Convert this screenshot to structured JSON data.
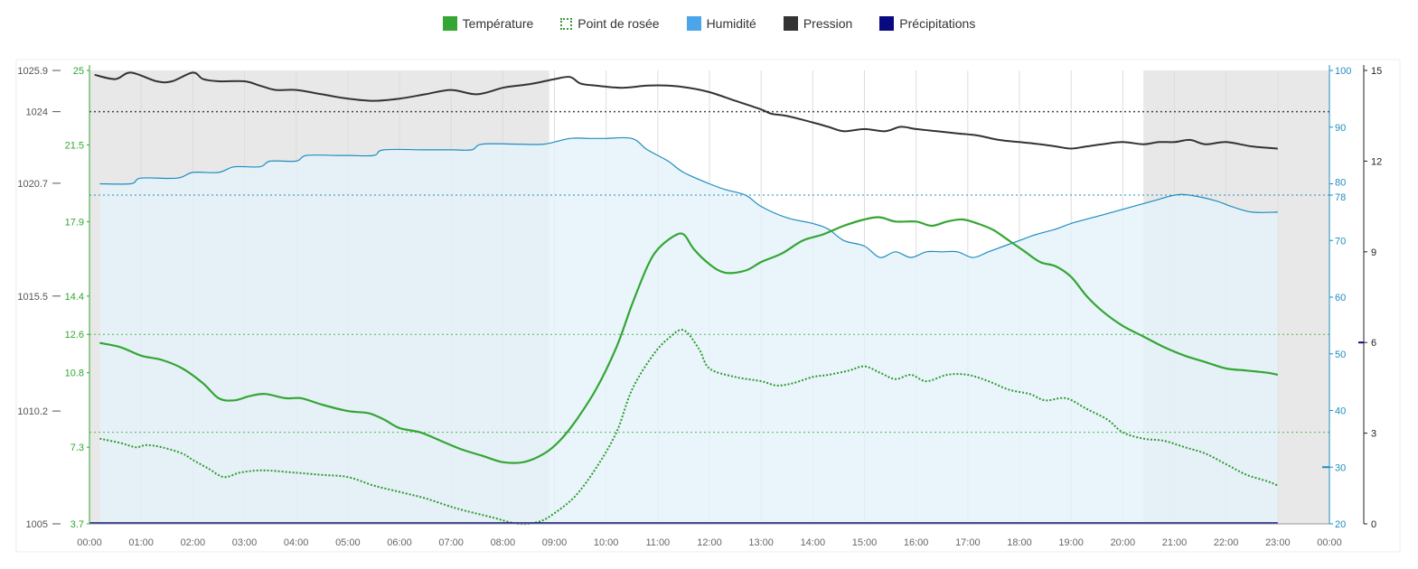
{
  "legend": {
    "temp_label": "Température",
    "dew_label": "Point de rosée",
    "hum_label": "Humidité",
    "pres_label": "Pression",
    "prec_label": "Précipitations"
  },
  "colors": {
    "temperature": "#33a633",
    "dewpoint": "#2e9a2e",
    "humidity": "#1f8dbf",
    "humidity_fill": "#e3f2fa",
    "pressure": "#333333",
    "precipitation": "#0a0a80",
    "night_shade": "#d6d6d6"
  },
  "chart_data": {
    "type": "line",
    "x_ticks": [
      "00:00",
      "01:00",
      "02:00",
      "03:00",
      "04:00",
      "05:00",
      "06:00",
      "07:00",
      "08:00",
      "09:00",
      "10:00",
      "11:00",
      "12:00",
      "13:00",
      "14:00",
      "15:00",
      "16:00",
      "17:00",
      "18:00",
      "19:00",
      "20:00",
      "21:00",
      "22:00",
      "23:00",
      "00:00"
    ],
    "xlim": [
      0,
      24
    ],
    "night_periods": [
      [
        0,
        8.9
      ],
      [
        20.4,
        24
      ]
    ],
    "axes": {
      "pressure": {
        "ticks": [
          "1005",
          "1010.2",
          "1015.5",
          "1020.7",
          "1024",
          "1025.9"
        ],
        "ylim": [
          1005,
          1025.9
        ]
      },
      "temperature": {
        "ticks": [
          "3.7",
          "7.3",
          "10.8",
          "12.6",
          "14.4",
          "17.9",
          "21.5",
          "25"
        ],
        "ylim": [
          3.7,
          25
        ]
      },
      "humidity": {
        "ticks": [
          "20",
          "30",
          "40",
          "50",
          "60",
          "70",
          "78",
          "80",
          "90",
          "100"
        ],
        "ylim": [
          20,
          100
        ]
      },
      "precipitation": {
        "ticks": [
          "0",
          "3",
          "6",
          "9",
          "12",
          "15"
        ],
        "ylim": [
          0,
          15
        ]
      }
    },
    "reference_lines": {
      "pressure": 1024,
      "humidity": 78,
      "temperature": [
        12.6,
        8.0
      ],
      "precipitation_tick": 6,
      "humidity_tick": 30
    },
    "series": [
      {
        "name": "Pression",
        "axis": "pressure",
        "x": [
          0.1,
          0.5,
          0.8,
          1.3,
          1.6,
          2.0,
          2.2,
          2.5,
          3.0,
          3.3,
          3.6,
          4.0,
          4.5,
          5.0,
          5.5,
          6.0,
          6.5,
          7.0,
          7.5,
          8.0,
          8.3,
          8.6,
          9.0,
          9.3,
          9.5,
          9.8,
          10.3,
          10.8,
          11.2,
          11.6,
          12.0,
          12.5,
          13.0,
          13.2,
          13.5,
          14.0,
          14.3,
          14.6,
          15.0,
          15.4,
          15.7,
          16.0,
          16.4,
          16.8,
          17.2,
          17.6,
          18.0,
          18.4,
          18.7,
          19.0,
          19.3,
          19.6,
          20.0,
          20.4,
          20.7,
          21.0,
          21.3,
          21.6,
          22.0,
          22.5,
          23.0
        ],
        "values": [
          1025.7,
          1025.5,
          1025.8,
          1025.4,
          1025.4,
          1025.8,
          1025.5,
          1025.4,
          1025.4,
          1025.2,
          1025.0,
          1025.0,
          1024.8,
          1024.6,
          1024.5,
          1024.6,
          1024.8,
          1025.0,
          1024.8,
          1025.1,
          1025.2,
          1025.3,
          1025.5,
          1025.6,
          1025.3,
          1025.2,
          1025.1,
          1025.2,
          1025.2,
          1025.1,
          1024.9,
          1024.5,
          1024.1,
          1023.9,
          1023.8,
          1023.5,
          1023.3,
          1023.1,
          1023.2,
          1023.1,
          1023.3,
          1023.2,
          1023.1,
          1023.0,
          1022.9,
          1022.7,
          1022.6,
          1022.5,
          1022.4,
          1022.3,
          1022.4,
          1022.5,
          1022.6,
          1022.5,
          1022.6,
          1022.6,
          1022.7,
          1022.5,
          1022.6,
          1022.4,
          1022.3
        ]
      },
      {
        "name": "Humidité",
        "axis": "humidity",
        "x": [
          0.2,
          0.8,
          1.0,
          1.7,
          2.0,
          2.5,
          2.8,
          3.3,
          3.5,
          4.0,
          4.2,
          4.8,
          5.0,
          5.5,
          5.7,
          6.5,
          7.0,
          7.4,
          7.6,
          8.3,
          8.8,
          9.3,
          9.7,
          10.0,
          10.5,
          10.8,
          11.2,
          11.5,
          12.0,
          12.3,
          12.7,
          13.0,
          13.5,
          14.0,
          14.3,
          14.6,
          15.0,
          15.3,
          15.6,
          15.9,
          16.2,
          16.5,
          16.8,
          17.1,
          17.4,
          17.7,
          18.0,
          18.3,
          18.7,
          19.0,
          19.4,
          19.8,
          20.2,
          20.6,
          21.0,
          21.3,
          21.8,
          22.1,
          22.5,
          23.0
        ],
        "values": [
          80,
          80,
          81,
          81,
          82,
          82,
          83,
          83,
          84,
          84,
          85,
          85,
          85,
          85,
          86,
          86,
          86,
          86,
          87,
          87,
          87,
          88,
          88,
          88,
          88,
          86,
          84,
          82,
          80,
          79,
          78,
          76,
          74,
          73,
          72,
          70,
          69,
          67,
          68,
          67,
          68,
          68,
          68,
          67,
          68,
          69,
          70,
          71,
          72,
          73,
          74,
          75,
          76,
          77,
          78,
          78,
          77,
          76,
          75,
          75
        ]
      },
      {
        "name": "Température",
        "axis": "temperature",
        "x": [
          0.2,
          0.6,
          1.0,
          1.4,
          1.8,
          2.2,
          2.5,
          2.8,
          3.1,
          3.4,
          3.8,
          4.1,
          4.5,
          5.0,
          5.4,
          5.7,
          6.0,
          6.4,
          6.8,
          7.2,
          7.6,
          8.0,
          8.4,
          8.8,
          9.1,
          9.4,
          9.8,
          10.2,
          10.5,
          10.8,
          11.0,
          11.3,
          11.5,
          11.7,
          12.0,
          12.3,
          12.7,
          13.0,
          13.4,
          13.8,
          14.2,
          14.6,
          15.0,
          15.3,
          15.6,
          16.0,
          16.3,
          16.6,
          16.9,
          17.2,
          17.5,
          17.8,
          18.1,
          18.4,
          18.7,
          19.0,
          19.3,
          19.6,
          20.0,
          20.4,
          20.8,
          21.2,
          21.6,
          22.0,
          22.4,
          22.8,
          23.0
        ],
        "values": [
          12.2,
          12.0,
          11.6,
          11.4,
          11.0,
          10.3,
          9.6,
          9.5,
          9.7,
          9.8,
          9.6,
          9.6,
          9.3,
          9.0,
          8.9,
          8.6,
          8.2,
          8.0,
          7.6,
          7.2,
          6.9,
          6.6,
          6.6,
          7.0,
          7.6,
          8.5,
          10.0,
          12.0,
          14.0,
          15.8,
          16.6,
          17.2,
          17.3,
          16.6,
          15.9,
          15.5,
          15.6,
          16.0,
          16.4,
          17.0,
          17.3,
          17.7,
          18.0,
          18.1,
          17.9,
          17.9,
          17.7,
          17.9,
          18.0,
          17.8,
          17.5,
          17.0,
          16.5,
          16.0,
          15.8,
          15.3,
          14.4,
          13.7,
          13.0,
          12.5,
          12.0,
          11.6,
          11.3,
          11.0,
          10.9,
          10.8,
          10.7
        ]
      },
      {
        "name": "Point de rosée",
        "axis": "temperature",
        "x": [
          0.2,
          0.6,
          0.9,
          1.1,
          1.4,
          1.8,
          2.0,
          2.3,
          2.6,
          2.9,
          3.2,
          3.5,
          4.0,
          4.5,
          5.0,
          5.5,
          6.0,
          6.5,
          7.0,
          7.3,
          7.8,
          8.3,
          8.7,
          9.0,
          9.4,
          9.8,
          10.2,
          10.5,
          10.9,
          11.2,
          11.5,
          11.8,
          12.0,
          12.5,
          13.0,
          13.3,
          13.6,
          14.0,
          14.3,
          14.7,
          15.0,
          15.3,
          15.6,
          15.9,
          16.2,
          16.6,
          17.0,
          17.4,
          17.8,
          18.2,
          18.5,
          18.9,
          19.3,
          19.7,
          20.0,
          20.4,
          20.8,
          21.2,
          21.6,
          22.0,
          22.4,
          22.8,
          23.0
        ],
        "values": [
          7.7,
          7.5,
          7.3,
          7.4,
          7.3,
          7.0,
          6.7,
          6.3,
          5.9,
          6.1,
          6.2,
          6.2,
          6.1,
          6.0,
          5.9,
          5.5,
          5.2,
          4.9,
          4.5,
          4.3,
          4.0,
          3.7,
          3.8,
          4.2,
          5.0,
          6.3,
          8.0,
          10.0,
          11.6,
          12.4,
          12.8,
          11.9,
          11.0,
          10.6,
          10.4,
          10.2,
          10.3,
          10.6,
          10.7,
          10.9,
          11.1,
          10.8,
          10.5,
          10.7,
          10.4,
          10.7,
          10.7,
          10.4,
          10.0,
          9.8,
          9.5,
          9.6,
          9.1,
          8.6,
          8.0,
          7.7,
          7.6,
          7.3,
          7.0,
          6.5,
          6.0,
          5.7,
          5.5
        ]
      },
      {
        "name": "Précipitations",
        "axis": "precipitation",
        "x": [
          0,
          23
        ],
        "values": [
          0,
          0
        ]
      }
    ]
  }
}
